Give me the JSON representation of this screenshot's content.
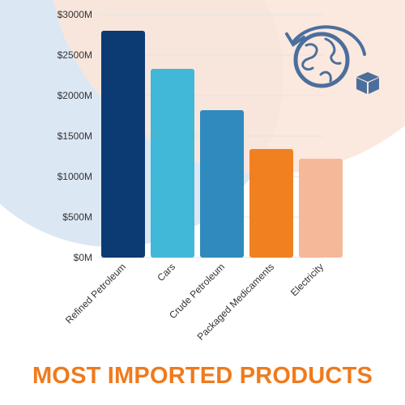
{
  "title": "MOST IMPORTED PRODUCTS",
  "colors": {
    "title": "#f07a1c",
    "bg_blue": "#dce7f4",
    "bg_peach": "#fbe6da",
    "icon": "#4a6f9c"
  },
  "icons": {
    "decoration": "globe-refresh-box-icon"
  },
  "chart_data": {
    "type": "bar",
    "categories": [
      "Refined Petroleum",
      "Cars",
      "Crude Petroleum",
      "Packaged Medicaments",
      "Electricity"
    ],
    "values": [
      2800,
      2330,
      1820,
      1340,
      1220
    ],
    "bar_colors": [
      "#0c3a73",
      "#41b8d8",
      "#2f8bbd",
      "#f08020",
      "#f5b898"
    ],
    "ylim": [
      0,
      3000
    ],
    "yticks": [
      0,
      500,
      1000,
      1500,
      2000,
      2500,
      3000
    ],
    "ytick_labels": [
      "$0M",
      "$500M",
      "$1000M",
      "$1500M",
      "$2000M",
      "$2500M",
      "$3000M"
    ],
    "grid": true,
    "title": "",
    "xlabel": "",
    "ylabel": ""
  }
}
